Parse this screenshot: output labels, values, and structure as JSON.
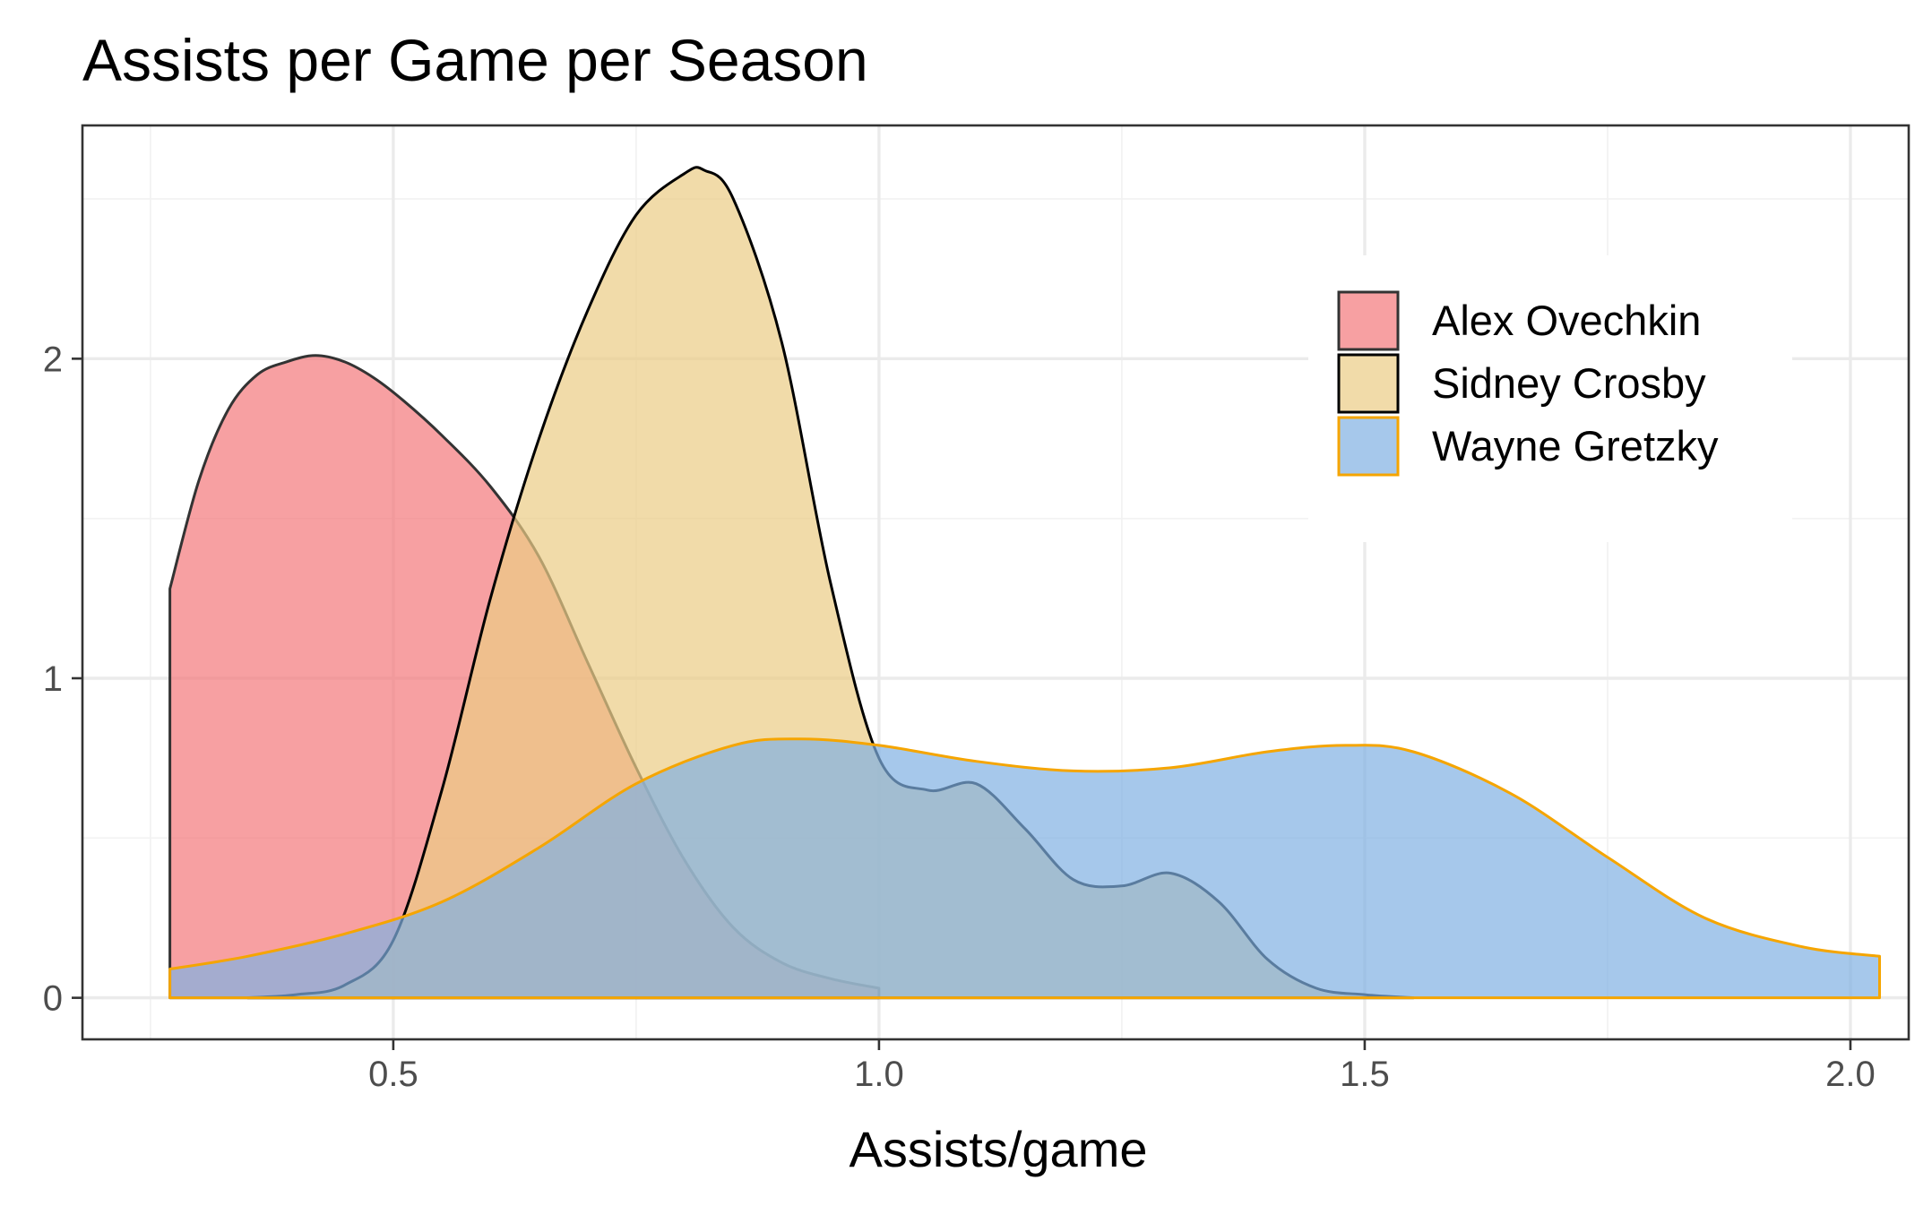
{
  "chart_data": {
    "type": "area",
    "subtype": "density",
    "title": "Assists per Game per Season",
    "xlabel": "Assists/game",
    "ylabel": "",
    "xlim": [
      0.18,
      2.06
    ],
    "ylim": [
      -0.13,
      2.73
    ],
    "x_ticks": [
      {
        "value": 0.5,
        "label": "0.5"
      },
      {
        "value": 1.0,
        "label": "1.0"
      },
      {
        "value": 1.5,
        "label": "1.5"
      },
      {
        "value": 2.0,
        "label": "2.0"
      }
    ],
    "y_ticks": [
      {
        "value": 0,
        "label": "0"
      },
      {
        "value": 1,
        "label": "1"
      },
      {
        "value": 2,
        "label": "2"
      }
    ],
    "grid": true,
    "legend": {
      "position": "right-inside"
    },
    "series": [
      {
        "name": "Alex Ovechkin",
        "fill": "#f4777b",
        "stroke": "#333333",
        "x": [
          0.27,
          0.3,
          0.33,
          0.36,
          0.39,
          0.42,
          0.45,
          0.48,
          0.51,
          0.55,
          0.6,
          0.65,
          0.7,
          0.75,
          0.8,
          0.85,
          0.9,
          0.95,
          1.0
        ],
        "y": [
          1.28,
          1.62,
          1.84,
          1.95,
          1.99,
          2.01,
          1.99,
          1.94,
          1.87,
          1.76,
          1.6,
          1.38,
          1.05,
          0.72,
          0.43,
          0.22,
          0.11,
          0.06,
          0.03
        ]
      },
      {
        "name": "Sidney Crosby",
        "fill": "#ebcc84",
        "stroke": "#000000",
        "x": [
          0.35,
          0.4,
          0.45,
          0.5,
          0.55,
          0.6,
          0.65,
          0.7,
          0.75,
          0.8,
          0.82,
          0.85,
          0.9,
          0.95,
          1.0,
          1.05,
          1.1,
          1.15,
          1.2,
          1.25,
          1.3,
          1.35,
          1.4,
          1.45,
          1.5,
          1.55
        ],
        "y": [
          0.0,
          0.01,
          0.04,
          0.18,
          0.65,
          1.25,
          1.75,
          2.15,
          2.45,
          2.58,
          2.59,
          2.5,
          2.05,
          1.3,
          0.75,
          0.65,
          0.67,
          0.53,
          0.37,
          0.35,
          0.39,
          0.3,
          0.12,
          0.03,
          0.01,
          0.0
        ]
      },
      {
        "name": "Wayne Gretzky",
        "fill": "#80b1e3",
        "stroke": "#f5a500",
        "x": [
          0.27,
          0.35,
          0.45,
          0.55,
          0.65,
          0.75,
          0.85,
          0.92,
          1.0,
          1.1,
          1.2,
          1.3,
          1.4,
          1.48,
          1.55,
          1.65,
          1.75,
          1.85,
          1.95,
          2.03
        ],
        "y": [
          0.09,
          0.13,
          0.2,
          0.3,
          0.47,
          0.67,
          0.79,
          0.81,
          0.79,
          0.74,
          0.71,
          0.72,
          0.77,
          0.79,
          0.77,
          0.64,
          0.44,
          0.25,
          0.16,
          0.13
        ]
      }
    ]
  }
}
